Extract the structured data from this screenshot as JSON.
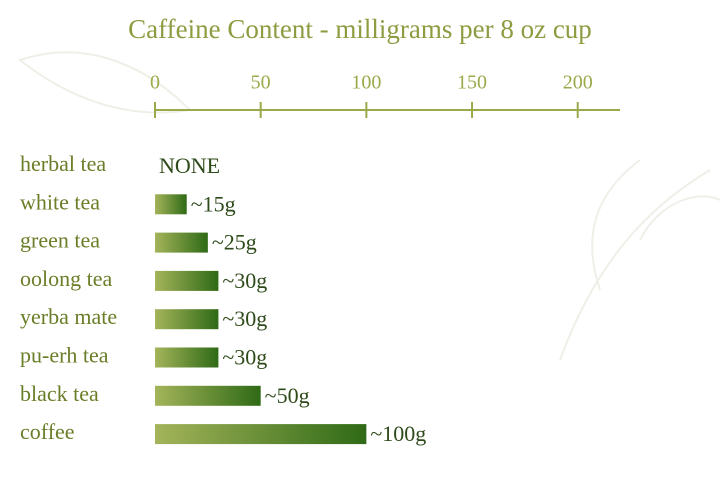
{
  "chart_data": {
    "type": "bar",
    "orientation": "horizontal",
    "title": "Caffeine Content  -  milligrams per 8 oz cup",
    "categories": [
      "herbal tea",
      "white tea",
      "green tea",
      "oolong tea",
      "yerba mate",
      "pu-erh tea",
      "black tea",
      "coffee"
    ],
    "values": [
      0,
      15,
      25,
      30,
      30,
      30,
      50,
      100
    ],
    "value_labels": [
      "NONE",
      "~15g",
      "~25g",
      "~30g",
      "~30g",
      "~30g",
      "~50g",
      "~100g"
    ],
    "color": [
      "#a4b45a",
      "#2f6a16"
    ],
    "xlim": [
      0,
      220
    ],
    "xticks": [
      0,
      50,
      100,
      150,
      200
    ]
  }
}
